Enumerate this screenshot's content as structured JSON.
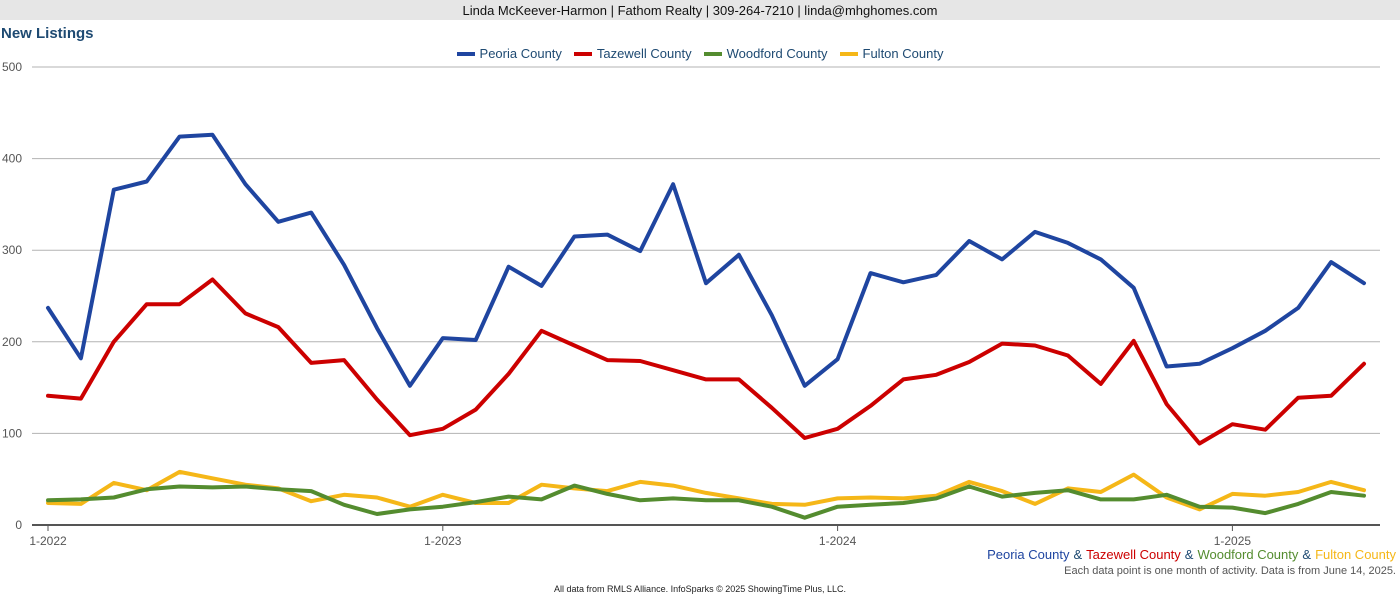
{
  "header": {
    "contact": "Linda McKeever-Harmon | Fathom Realty | 309-264-7210 | linda@mhghomes.com"
  },
  "chart_data": {
    "type": "line",
    "title": "New Listings",
    "xlabel": "",
    "ylabel": "",
    "ylim": [
      0,
      500
    ],
    "y_ticks": [
      0,
      100,
      200,
      300,
      400,
      500
    ],
    "x_ticks": [
      {
        "label": "1-2022",
        "index": 0
      },
      {
        "label": "1-2023",
        "index": 12
      },
      {
        "label": "1-2024",
        "index": 24
      },
      {
        "label": "1-2025",
        "index": 36
      }
    ],
    "x": [
      "1-2022",
      "2-2022",
      "3-2022",
      "4-2022",
      "5-2022",
      "6-2022",
      "7-2022",
      "8-2022",
      "9-2022",
      "10-2022",
      "11-2022",
      "12-2022",
      "1-2023",
      "2-2023",
      "3-2023",
      "4-2023",
      "5-2023",
      "6-2023",
      "7-2023",
      "8-2023",
      "9-2023",
      "10-2023",
      "11-2023",
      "12-2023",
      "1-2024",
      "2-2024",
      "3-2024",
      "4-2024",
      "5-2024",
      "6-2024",
      "7-2024",
      "8-2024",
      "9-2024",
      "10-2024",
      "11-2024",
      "12-2024",
      "1-2025",
      "2-2025",
      "3-2025",
      "4-2025",
      "5-2025"
    ],
    "grid": true,
    "legend_position": "top-center",
    "series": [
      {
        "name": "Peoria County",
        "color": "#1f45a0",
        "values": [
          237,
          182,
          366,
          375,
          424,
          426,
          372,
          331,
          341,
          284,
          215,
          152,
          204,
          202,
          282,
          261,
          315,
          317,
          299,
          372,
          264,
          295,
          229,
          152,
          181,
          275,
          265,
          273,
          310,
          290,
          320,
          308,
          290,
          259,
          173,
          176,
          193,
          212,
          237,
          287,
          264
        ]
      },
      {
        "name": "Tazewell County",
        "color": "#cc0000",
        "values": [
          141,
          138,
          200,
          241,
          241,
          268,
          231,
          216,
          177,
          180,
          137,
          98,
          105,
          126,
          165,
          212,
          196,
          180,
          179,
          169,
          159,
          159,
          128,
          95,
          105,
          130,
          159,
          164,
          178,
          198,
          196,
          185,
          154,
          201,
          132,
          89,
          110,
          104,
          139,
          141,
          176
        ]
      },
      {
        "name": "Woodford County",
        "color": "#548c2f",
        "values": [
          27,
          28,
          30,
          39,
          42,
          41,
          42,
          39,
          37,
          22,
          12,
          17,
          20,
          25,
          31,
          28,
          43,
          34,
          27,
          29,
          27,
          27,
          20,
          8,
          20,
          22,
          24,
          29,
          42,
          31,
          35,
          38,
          28,
          28,
          33,
          20,
          19,
          13,
          23,
          36,
          32
        ]
      },
      {
        "name": "Fulton County",
        "color": "#f5b718",
        "values": [
          24,
          23,
          46,
          38,
          58,
          51,
          44,
          40,
          26,
          33,
          30,
          20,
          33,
          24,
          24,
          44,
          40,
          37,
          47,
          43,
          35,
          29,
          23,
          22,
          29,
          30,
          29,
          32,
          47,
          37,
          23,
          40,
          36,
          55,
          30,
          17,
          34,
          32,
          36,
          47,
          38
        ]
      }
    ]
  },
  "selection_line": {
    "sep": "&"
  },
  "note": "Each data point is one month of activity. Data is from June 14, 2025.",
  "footer": "All data from RMLS Alliance. InfoSparks © 2025 ShowingTime Plus, LLC."
}
